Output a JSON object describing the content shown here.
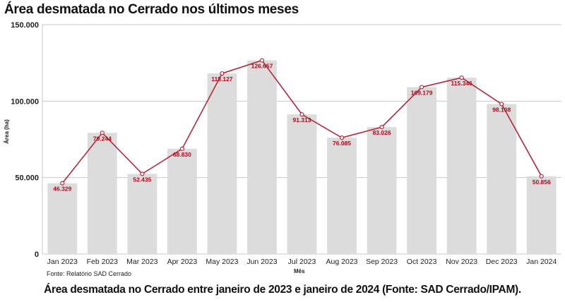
{
  "chart_data": {
    "type": "bar",
    "title": "Área desmatada no Cerrado nos últimos meses",
    "xlabel": "Mês",
    "ylabel": "Área (ha)",
    "ylim": [
      0,
      150000
    ],
    "yticks": [
      0,
      50000,
      100000,
      150000
    ],
    "ytick_labels": [
      "0",
      "50.000",
      "100.000",
      "150.000"
    ],
    "grid": true,
    "categories": [
      "Jan 2023",
      "Feb 2023",
      "Mar 2023",
      "Apr 2023",
      "May 2023",
      "Jun 2023",
      "Jul 2023",
      "Aug 2023",
      "Sep 2023",
      "Oct 2023",
      "Nov 2023",
      "Dec 2023",
      "Jan 2024"
    ],
    "values": [
      46329,
      79244,
      52435,
      68830,
      118127,
      126657,
      91313,
      76085,
      83026,
      109179,
      115346,
      98108,
      50856
    ],
    "value_labels": [
      "46.329",
      "79.244",
      "52.435",
      "68.830",
      "118.127",
      "126.657",
      "91.313",
      "76.085",
      "83.026",
      "109.179",
      "115.346",
      "98.108",
      "50.856"
    ],
    "series_style": {
      "bar_color": "#dcdcdc",
      "line_color": "#b5283a",
      "label_color": "#c00018"
    }
  },
  "source": "Fonte: Relatório SAD Cerrado",
  "caption": "Área desmatada no Cerrado entre janeiro de 2023 e janeiro de 2024 (Fonte: SAD Cerrado/IPAM)."
}
